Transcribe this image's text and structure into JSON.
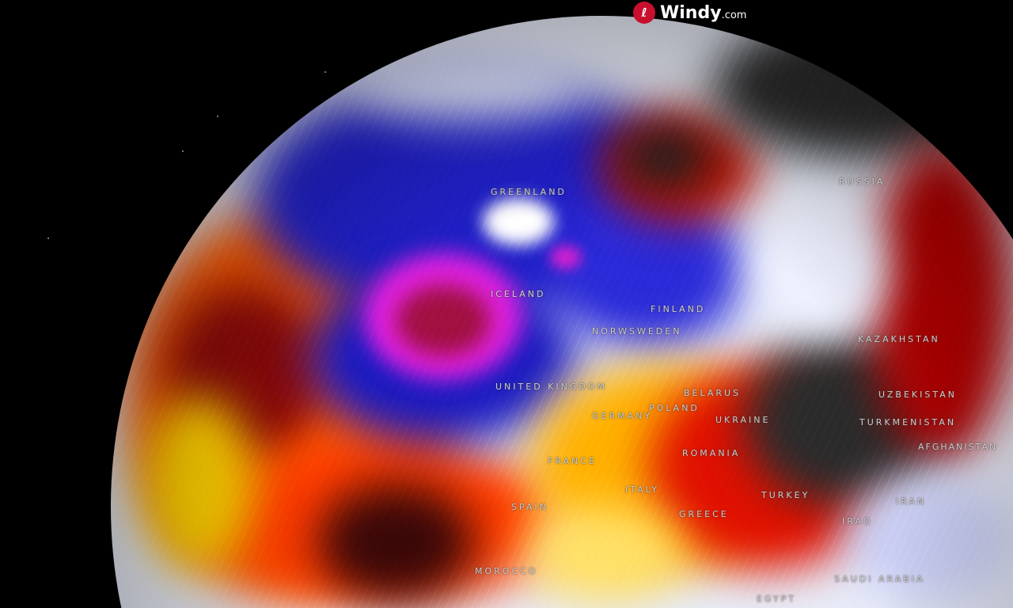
{
  "brand": {
    "name": "Windy",
    "suffix": ".com",
    "icon": "windy-logo-icon",
    "color": "#c8102e"
  },
  "map": {
    "layer_colors": {
      "cold": "#1a1acc",
      "very_cold": "#d020d0",
      "warm": "#ff3000",
      "hot": "#2a2a2a",
      "neutral": "#e8ecf8",
      "mild": "#ffe000"
    },
    "labels": [
      {
        "text": "GREENLAND"
      },
      {
        "text": "RUSSIA"
      },
      {
        "text": "ICELAND"
      },
      {
        "text": "FINLAND"
      },
      {
        "text": "NORWSWEDEN"
      },
      {
        "text": "UNITED KINGDOM"
      },
      {
        "text": "BELARUS"
      },
      {
        "text": "POLAND"
      },
      {
        "text": "GERMANY"
      },
      {
        "text": "UKRAINE"
      },
      {
        "text": "KAZAKHSTAN"
      },
      {
        "text": "UZBEKISTAN"
      },
      {
        "text": "TURKMENISTAN"
      },
      {
        "text": "AFGHANISTAN"
      },
      {
        "text": "ROMANIA"
      },
      {
        "text": "FRANCE"
      },
      {
        "text": "SPAIN"
      },
      {
        "text": "ITALY"
      },
      {
        "text": "TURKEY"
      },
      {
        "text": "GREECE"
      },
      {
        "text": "IRAN"
      },
      {
        "text": "IRAQ"
      },
      {
        "text": "MOROCCO"
      },
      {
        "text": "SAUDI ARABIA"
      },
      {
        "text": "EGYPT"
      }
    ]
  }
}
